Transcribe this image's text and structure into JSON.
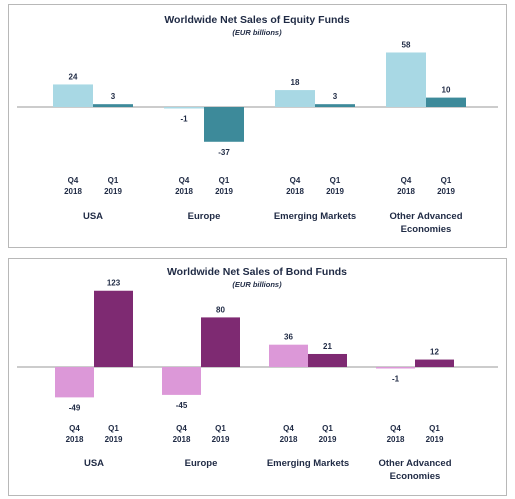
{
  "chart_data": [
    {
      "type": "bar",
      "title": "Worldwide Net Sales of Equity Funds",
      "subtitle": "(EUR billions)",
      "groups": [
        "USA",
        "Europe",
        "Emerging Markets",
        "Other Advanced Economies"
      ],
      "periods": [
        "Q4 2018",
        "Q1 2019"
      ],
      "series": [
        {
          "name": "Q4 2018",
          "color": "#a8d8e4",
          "values": [
            24,
            -1,
            18,
            58
          ]
        },
        {
          "name": "Q1 2019",
          "color": "#3d8a9a",
          "values": [
            3,
            -37,
            3,
            10
          ]
        }
      ],
      "legend": "none"
    },
    {
      "type": "bar",
      "title": "Worldwide Net Sales of Bond Funds",
      "subtitle": "(EUR billions)",
      "groups": [
        "USA",
        "Europe",
        "Emerging Markets",
        "Other Advanced Economies"
      ],
      "periods": [
        "Q4 2018",
        "Q1 2019"
      ],
      "series": [
        {
          "name": "Q4 2018",
          "color": "#dc98d8",
          "values": [
            -49,
            -45,
            36,
            -1
          ]
        },
        {
          "name": "Q1 2019",
          "color": "#7e2a72",
          "values": [
            123,
            80,
            21,
            12
          ]
        }
      ],
      "legend": "none"
    }
  ]
}
